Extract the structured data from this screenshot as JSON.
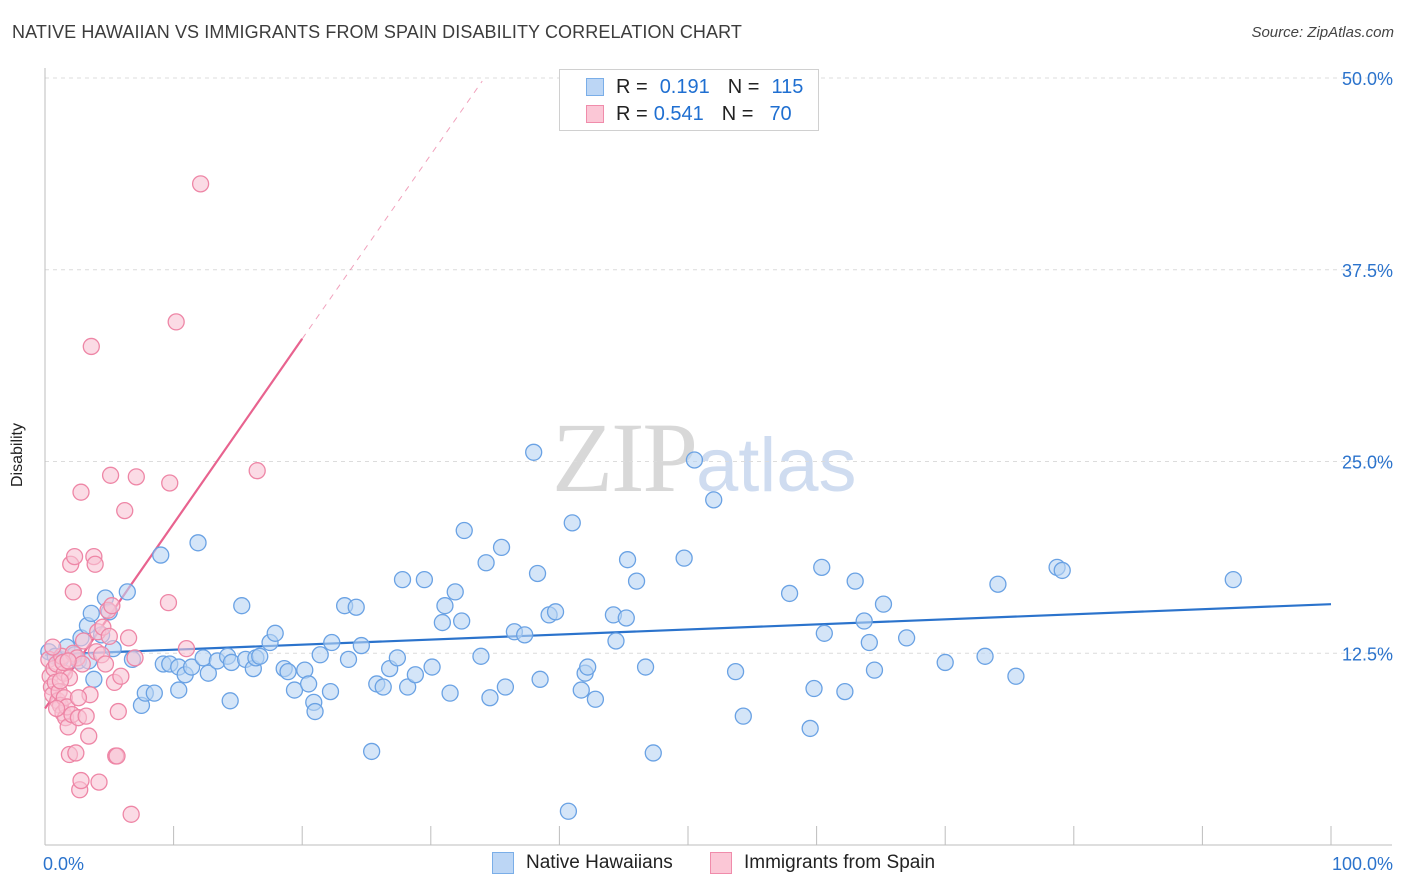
{
  "header": {
    "title": "NATIVE HAWAIIAN VS IMMIGRANTS FROM SPAIN DISABILITY CORRELATION CHART",
    "source": "Source: ZipAtlas.com"
  },
  "watermark": {
    "zip": "ZIP",
    "atlas": "atlas"
  },
  "legend": {
    "r_label": "R =",
    "n_label": "N =",
    "rows": [
      {
        "name": "Native Hawaiians",
        "r": "0.191",
        "n": "115",
        "color": "#7aaee8",
        "fill": "#bcd6f5"
      },
      {
        "name": "Immigrants from Spain",
        "r": "0.541",
        "n": "70",
        "color": "#f08cab",
        "fill": "#fbc7d6"
      }
    ]
  },
  "colors": {
    "blue_stroke": "#6aa2e4",
    "blue_fill": "#b7d3f4",
    "blue_line": "#2b73cc",
    "pink_stroke": "#ee86a6",
    "pink_fill": "#f9c3d3",
    "pink_line": "#e8638f",
    "grid": "#dcdcdc",
    "tick_text": "#2b73cc"
  },
  "chart_data": {
    "type": "scatter",
    "title": "NATIVE HAWAIIAN VS IMMIGRANTS FROM SPAIN DISABILITY CORRELATION CHART",
    "xlabel": "",
    "ylabel": "Disability",
    "xlim": [
      0,
      100
    ],
    "ylim": [
      0,
      50
    ],
    "x_tick_labels": [
      "0.0%",
      "100.0%"
    ],
    "y_ticks": [
      12.5,
      25.0,
      37.5,
      50.0
    ],
    "y_tick_labels": [
      "12.5%",
      "25.0%",
      "37.5%",
      "50.0%"
    ],
    "grid": true,
    "series": [
      {
        "name": "Native Hawaiians",
        "r": 0.191,
        "n": 115,
        "trend": {
          "x": [
            0,
            100
          ],
          "y": [
            12.4,
            15.7
          ],
          "style": "solid"
        },
        "points": [
          [
            0.3,
            12.6
          ],
          [
            0.8,
            12.3
          ],
          [
            1.2,
            12.1
          ],
          [
            1.7,
            12.9
          ],
          [
            2.3,
            12.4
          ],
          [
            2.6,
            12.0
          ],
          [
            2.8,
            13.5
          ],
          [
            3.3,
            14.3
          ],
          [
            3.4,
            12.0
          ],
          [
            3.6,
            15.1
          ],
          [
            3.8,
            10.8
          ],
          [
            4.4,
            13.7
          ],
          [
            4.7,
            16.1
          ],
          [
            5.0,
            15.2
          ],
          [
            5.3,
            12.8
          ],
          [
            6.4,
            16.5
          ],
          [
            6.8,
            12.1
          ],
          [
            7.5,
            9.1
          ],
          [
            7.8,
            9.9
          ],
          [
            8.5,
            9.9
          ],
          [
            9.0,
            18.9
          ],
          [
            9.2,
            11.8
          ],
          [
            9.7,
            11.8
          ],
          [
            10.4,
            11.6
          ],
          [
            10.4,
            10.1
          ],
          [
            10.9,
            11.1
          ],
          [
            11.4,
            11.6
          ],
          [
            11.9,
            19.7
          ],
          [
            12.3,
            12.2
          ],
          [
            12.7,
            11.2
          ],
          [
            13.4,
            12.0
          ],
          [
            14.2,
            12.3
          ],
          [
            14.4,
            9.4
          ],
          [
            14.5,
            11.9
          ],
          [
            15.3,
            15.6
          ],
          [
            15.6,
            12.1
          ],
          [
            16.2,
            11.5
          ],
          [
            16.4,
            12.2
          ],
          [
            16.7,
            12.3
          ],
          [
            17.5,
            13.2
          ],
          [
            17.9,
            13.8
          ],
          [
            18.6,
            11.5
          ],
          [
            18.9,
            11.3
          ],
          [
            19.4,
            10.1
          ],
          [
            20.2,
            11.4
          ],
          [
            20.5,
            10.5
          ],
          [
            20.9,
            9.3
          ],
          [
            21.0,
            8.7
          ],
          [
            21.4,
            12.4
          ],
          [
            22.2,
            10.0
          ],
          [
            22.3,
            13.2
          ],
          [
            23.3,
            15.6
          ],
          [
            23.6,
            12.1
          ],
          [
            24.2,
            15.5
          ],
          [
            24.6,
            13.0
          ],
          [
            25.4,
            6.1
          ],
          [
            25.8,
            10.5
          ],
          [
            26.3,
            10.3
          ],
          [
            26.8,
            11.5
          ],
          [
            27.4,
            12.2
          ],
          [
            27.8,
            17.3
          ],
          [
            28.2,
            10.3
          ],
          [
            28.8,
            11.1
          ],
          [
            29.5,
            17.3
          ],
          [
            30.1,
            11.6
          ],
          [
            30.9,
            14.5
          ],
          [
            31.1,
            15.6
          ],
          [
            31.5,
            9.9
          ],
          [
            31.9,
            16.5
          ],
          [
            32.4,
            14.6
          ],
          [
            32.6,
            20.5
          ],
          [
            33.9,
            12.3
          ],
          [
            34.3,
            18.4
          ],
          [
            34.6,
            9.6
          ],
          [
            35.5,
            19.4
          ],
          [
            35.8,
            10.3
          ],
          [
            36.5,
            13.9
          ],
          [
            37.3,
            13.7
          ],
          [
            38.0,
            25.6
          ],
          [
            38.3,
            17.7
          ],
          [
            38.5,
            10.8
          ],
          [
            39.2,
            15.0
          ],
          [
            39.7,
            15.2
          ],
          [
            40.7,
            2.2
          ],
          [
            41.0,
            21.0
          ],
          [
            41.7,
            10.1
          ],
          [
            42.0,
            11.2
          ],
          [
            42.2,
            11.6
          ],
          [
            42.8,
            9.5
          ],
          [
            44.2,
            15.0
          ],
          [
            44.4,
            13.3
          ],
          [
            45.2,
            14.8
          ],
          [
            45.3,
            18.6
          ],
          [
            46.0,
            17.2
          ],
          [
            46.7,
            11.6
          ],
          [
            47.3,
            6.0
          ],
          [
            49.7,
            18.7
          ],
          [
            50.5,
            25.1
          ],
          [
            52.0,
            22.5
          ],
          [
            53.7,
            11.3
          ],
          [
            54.3,
            8.4
          ],
          [
            57.9,
            16.4
          ],
          [
            59.5,
            7.6
          ],
          [
            59.8,
            10.2
          ],
          [
            60.4,
            18.1
          ],
          [
            60.6,
            13.8
          ],
          [
            62.2,
            10.0
          ],
          [
            63.0,
            17.2
          ],
          [
            63.7,
            14.6
          ],
          [
            64.1,
            13.2
          ],
          [
            64.5,
            11.4
          ],
          [
            65.2,
            15.7
          ],
          [
            67.0,
            13.5
          ],
          [
            70.0,
            11.9
          ],
          [
            73.1,
            12.3
          ],
          [
            74.1,
            17.0
          ],
          [
            75.5,
            11.0
          ],
          [
            78.7,
            18.1
          ],
          [
            79.1,
            17.9
          ],
          [
            92.4,
            17.3
          ]
        ]
      },
      {
        "name": "Immigrants from Spain",
        "r": 0.541,
        "n": 70,
        "trend": {
          "x": [
            0,
            20
          ],
          "y": [
            8.9,
            33.0
          ],
          "style": "solid",
          "extension": {
            "x": [
              20,
              34
            ],
            "y": [
              33.0,
              49.8
            ],
            "style": "dashed"
          }
        },
        "points": [
          [
            0.3,
            12.1
          ],
          [
            0.4,
            11.0
          ],
          [
            0.5,
            10.3
          ],
          [
            0.6,
            9.8
          ],
          [
            0.7,
            11.5
          ],
          [
            0.8,
            10.6
          ],
          [
            0.9,
            11.8
          ],
          [
            1.0,
            9.4
          ],
          [
            1.1,
            10.0
          ],
          [
            1.2,
            9.1
          ],
          [
            1.3,
            12.3
          ],
          [
            1.4,
            8.6
          ],
          [
            1.5,
            11.2
          ],
          [
            1.5,
            9.6
          ],
          [
            1.6,
            8.3
          ],
          [
            1.7,
            9.0
          ],
          [
            1.8,
            7.7
          ],
          [
            1.9,
            5.9
          ],
          [
            1.9,
            10.9
          ],
          [
            2.0,
            18.3
          ],
          [
            2.1,
            8.5
          ],
          [
            2.2,
            12.5
          ],
          [
            2.2,
            16.5
          ],
          [
            2.3,
            18.8
          ],
          [
            2.4,
            6.0
          ],
          [
            2.5,
            12.2
          ],
          [
            2.6,
            8.3
          ],
          [
            2.7,
            3.6
          ],
          [
            2.8,
            23.0
          ],
          [
            2.8,
            4.2
          ],
          [
            2.9,
            11.8
          ],
          [
            3.0,
            13.3
          ],
          [
            3.2,
            8.4
          ],
          [
            3.4,
            7.1
          ],
          [
            3.5,
            9.8
          ],
          [
            3.6,
            32.5
          ],
          [
            3.8,
            18.8
          ],
          [
            3.9,
            18.3
          ],
          [
            4.0,
            12.6
          ],
          [
            4.1,
            13.9
          ],
          [
            4.2,
            4.1
          ],
          [
            4.4,
            12.4
          ],
          [
            4.5,
            14.2
          ],
          [
            4.7,
            11.8
          ],
          [
            4.9,
            15.3
          ],
          [
            5.0,
            13.6
          ],
          [
            5.1,
            24.1
          ],
          [
            5.2,
            15.6
          ],
          [
            5.4,
            10.6
          ],
          [
            5.5,
            5.8
          ],
          [
            5.6,
            5.8
          ],
          [
            5.7,
            8.7
          ],
          [
            5.9,
            11.0
          ],
          [
            6.2,
            21.8
          ],
          [
            6.5,
            13.5
          ],
          [
            6.7,
            2.0
          ],
          [
            7.0,
            12.2
          ],
          [
            7.1,
            24.0
          ],
          [
            9.6,
            15.8
          ],
          [
            9.7,
            23.6
          ],
          [
            10.2,
            34.1
          ],
          [
            11.0,
            12.8
          ],
          [
            12.1,
            43.1
          ],
          [
            16.5,
            24.4
          ],
          [
            1.2,
            10.7
          ],
          [
            0.9,
            8.9
          ],
          [
            1.4,
            11.9
          ],
          [
            2.6,
            9.6
          ],
          [
            0.6,
            12.9
          ],
          [
            1.8,
            12.0
          ]
        ]
      }
    ]
  }
}
